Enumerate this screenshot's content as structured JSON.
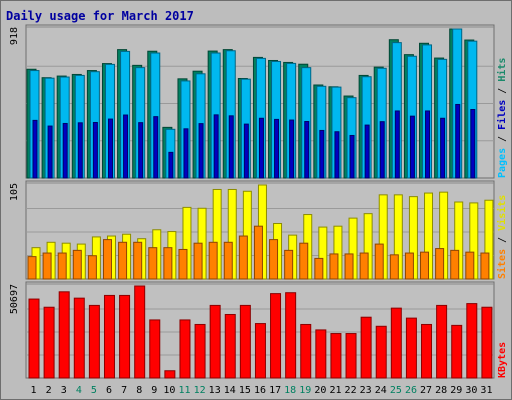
{
  "chart_data": {
    "type": "bar",
    "title": "Daily usage for March 2017",
    "days": [
      "1",
      "2",
      "3",
      "4",
      "5",
      "6",
      "7",
      "8",
      "9",
      "10",
      "11",
      "12",
      "13",
      "14",
      "15",
      "16",
      "17",
      "18",
      "19",
      "20",
      "21",
      "22",
      "23",
      "24",
      "25",
      "26",
      "27",
      "28",
      "29",
      "30",
      "31"
    ],
    "weekend_days": [
      "4",
      "5",
      "11",
      "12",
      "18",
      "19",
      "25",
      "26"
    ],
    "panels": [
      {
        "id": "hits",
        "ymax_label": "918",
        "ymax": 918,
        "legend": [
          "Pages",
          "Files",
          "Hits"
        ],
        "legend_colors": [
          "#00c0ff",
          "#0000c0",
          "#1b8a6b"
        ],
        "series": [
          {
            "name": "Hits",
            "color": "#008060",
            "values": [
              670,
              618,
              628,
              638,
              662,
              705,
              791,
              694,
              781,
              312,
              611,
              658,
              782,
              791,
              613,
              743,
              724,
              712,
              701,
              573,
              562,
              505,
              632,
              683,
              852,
              760,
              830,
              739,
              918,
              850,
              0
            ]
          },
          {
            "name": "Files",
            "color": "#00b8f0",
            "values": [
              662,
              615,
              622,
              632,
              655,
              700,
              780,
              680,
              770,
              300,
              598,
              642,
              770,
              784,
              609,
              737,
              718,
              706,
              680,
              565,
              560,
              495,
              624,
              676,
              834,
              750,
              820,
              731,
              918,
              843,
              0
            ]
          },
          {
            "name": "Pages",
            "color": "#0000c0",
            "values": [
              355,
              320,
              336,
              340,
              342,
              363,
              388,
              341,
              378,
              158,
              303,
              335,
              389,
              383,
              332,
              368,
              361,
              357,
              348,
              293,
              285,
              262,
              326,
              347,
              413,
              381,
              413,
              368,
              453,
              422,
              0
            ]
          }
        ]
      },
      {
        "id": "visits",
        "ymax_label": "105",
        "ymax": 105,
        "legend": [
          "Sites",
          "Visits"
        ],
        "legend_colors": [
          "#ff8000",
          "#e0e000"
        ],
        "series": [
          {
            "name": "Visits",
            "color": "#ffff00",
            "values": [
              35,
              41,
              40,
              39,
              47,
              48,
              50,
              45,
              55,
              53,
              80,
              79,
              100,
              100,
              98,
              105,
              62,
              49,
              72,
              58,
              59,
              68,
              73,
              94,
              94,
              92,
              96,
              97,
              86,
              85,
              88
            ]
          },
          {
            "name": "Sites",
            "color": "#ff8000",
            "values": [
              25,
              29,
              29,
              32,
              26,
              44,
              41,
              41,
              35,
              35,
              33,
              40,
              41,
              41,
              48,
              59,
              44,
              32,
              40,
              23,
              28,
              28,
              29,
              39,
              27,
              29,
              30,
              34,
              32,
              30,
              29
            ]
          }
        ]
      },
      {
        "id": "kbytes",
        "ymax_label": "50697",
        "ymax": 50697,
        "legend": [
          "KBytes"
        ],
        "legend_colors": [
          "#ff0000"
        ],
        "series": [
          {
            "name": "KBytes",
            "color": "#ff0000",
            "values": [
              43500,
              39000,
              47500,
              44000,
              40000,
              45500,
              45500,
              50697,
              32000,
              4000,
              32000,
              29500,
              40000,
              35000,
              40000,
              30000,
              46500,
              47000,
              29500,
              26500,
              24500,
              24500,
              33500,
              28500,
              38500,
              33000,
              29500,
              40000,
              29000,
              41000,
              39000
            ]
          }
        ]
      }
    ]
  }
}
